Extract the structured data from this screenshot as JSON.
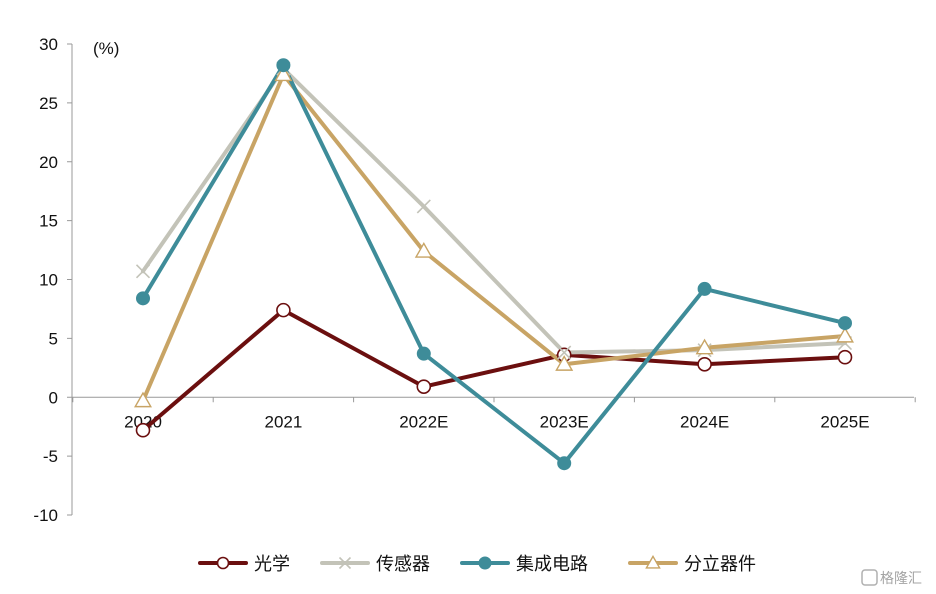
{
  "chart_data": {
    "type": "line",
    "categories": [
      "2020",
      "2021",
      "2022E",
      "2023E",
      "2024E",
      "2025E"
    ],
    "unit_label": "(%)",
    "ylim": [
      -10,
      30
    ],
    "yticks": [
      -10,
      -5,
      0,
      5,
      10,
      15,
      20,
      25,
      30
    ],
    "grid": false,
    "legend_position": "bottom",
    "series": [
      {
        "name": "光学",
        "color": "#6b0f0f",
        "marker": "circle-open",
        "values": [
          -2.8,
          7.4,
          0.9,
          3.6,
          2.8,
          3.4
        ]
      },
      {
        "name": "传感器",
        "color": "#c3c3b8",
        "marker": "x",
        "values": [
          10.7,
          27.9,
          16.2,
          3.8,
          4.0,
          4.6
        ]
      },
      {
        "name": "集成电路",
        "color": "#3e8c99",
        "marker": "circle-filled",
        "values": [
          8.4,
          28.2,
          3.7,
          -5.6,
          9.2,
          6.3
        ]
      },
      {
        "name": "分立器件",
        "color": "#c8a465",
        "marker": "triangle-open",
        "values": [
          -0.3,
          27.4,
          12.4,
          2.8,
          4.2,
          5.2
        ]
      }
    ]
  },
  "watermark": {
    "text": "格隆汇"
  }
}
